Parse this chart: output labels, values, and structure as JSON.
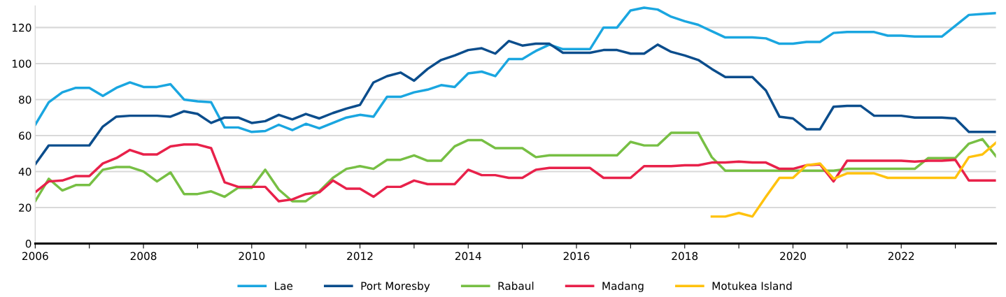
{
  "chart_data": {
    "type": "line",
    "x": [
      2006,
      2006.25,
      2006.5,
      2006.75,
      2007,
      2007.25,
      2007.5,
      2007.75,
      2008,
      2008.25,
      2008.5,
      2008.75,
      2009,
      2009.25,
      2009.5,
      2009.75,
      2010,
      2010.25,
      2010.5,
      2010.75,
      2011,
      2011.25,
      2011.5,
      2011.75,
      2012,
      2012.25,
      2012.5,
      2012.75,
      2013,
      2013.25,
      2013.5,
      2013.75,
      2014,
      2014.25,
      2014.5,
      2014.75,
      2015,
      2015.25,
      2015.5,
      2015.75,
      2016,
      2016.25,
      2016.5,
      2016.75,
      2017,
      2017.25,
      2017.5,
      2017.75,
      2018,
      2018.25,
      2018.5,
      2018.75,
      2019,
      2019.25,
      2019.5,
      2019.75,
      2020,
      2020.25,
      2020.5,
      2020.75,
      2021,
      2021.25,
      2021.5,
      2021.75,
      2022,
      2022.25,
      2022.5,
      2022.75,
      2023,
      2023.25,
      2023.5,
      2023.75
    ],
    "series": [
      {
        "name": "Lae",
        "color": "#1aa6e0",
        "values": [
          66,
          78.5,
          84,
          86.5,
          86.5,
          82,
          86.5,
          89.5,
          87,
          87,
          88.5,
          80,
          79,
          78.5,
          64.5,
          64.5,
          62,
          62.5,
          66,
          63,
          66.5,
          64,
          67,
          70,
          71.5,
          70.5,
          81.5,
          81.5,
          84,
          85.5,
          88,
          87,
          94.5,
          95.5,
          93,
          102.5,
          102.5,
          107,
          110.5,
          108,
          108,
          108,
          120,
          120,
          129.5,
          131,
          130,
          126,
          123.5,
          121.5,
          118,
          114.5,
          114.5,
          114.5,
          114,
          111,
          111,
          112,
          112,
          117,
          117.5,
          117.5,
          117.5,
          115.5,
          115.5,
          115,
          115,
          115,
          121,
          127,
          127.5,
          128
        ]
      },
      {
        "name": "Port Moresby",
        "color": "#0b4d8c",
        "values": [
          44,
          54.5,
          54.5,
          54.5,
          54.5,
          65,
          70.5,
          71,
          71,
          71,
          70.5,
          73.5,
          72,
          67,
          70,
          70,
          67,
          68,
          71.5,
          69,
          72,
          69.5,
          72.5,
          75,
          77,
          89.5,
          93,
          95,
          90.5,
          97,
          102,
          104.5,
          107.5,
          108.5,
          105.5,
          112.5,
          110,
          111,
          111,
          106,
          106,
          106,
          107.5,
          107.5,
          105.5,
          105.5,
          110.5,
          106.5,
          104.5,
          102,
          97,
          92.5,
          92.5,
          92.5,
          85,
          70.5,
          69.5,
          63.5,
          63.5,
          76,
          76.5,
          76.5,
          71,
          71,
          71,
          70,
          70,
          70,
          69.5,
          62,
          62,
          62
        ]
      },
      {
        "name": "Rabaul",
        "color": "#77bf44",
        "values": [
          23.5,
          36,
          29.5,
          32.5,
          32.5,
          41,
          42.5,
          42.5,
          40,
          34.5,
          39.5,
          27.5,
          27.5,
          29,
          26,
          31,
          31,
          41,
          30,
          23.5,
          23.5,
          29,
          36.5,
          41.5,
          43,
          41.5,
          46.5,
          46.5,
          49,
          46,
          46,
          54,
          57.5,
          57.5,
          53,
          53,
          53,
          48,
          49,
          49,
          49,
          49,
          49,
          49,
          56.5,
          54.5,
          54.5,
          61.5,
          61.5,
          61.5,
          48,
          40.5,
          40.5,
          40.5,
          40.5,
          40.5,
          40.5,
          40.5,
          40.5,
          40.5,
          41.5,
          41.5,
          41.5,
          41.5,
          41.5,
          41.5,
          47.5,
          47.5,
          47.5,
          55.5,
          58,
          48.5
        ]
      },
      {
        "name": "Madang",
        "color": "#e8214a",
        "values": [
          28.5,
          34.5,
          35,
          37.5,
          37.5,
          44.5,
          47.5,
          52,
          49.5,
          49.5,
          54,
          55,
          55,
          53,
          34,
          31.5,
          31.5,
          31.5,
          23.5,
          24.5,
          27.5,
          28.5,
          35,
          30.5,
          30.5,
          26,
          31.5,
          31.5,
          35,
          33,
          33,
          33,
          41,
          38,
          38,
          36.5,
          36.5,
          41,
          42,
          42,
          42,
          42,
          36.5,
          36.5,
          36.5,
          43,
          43,
          43,
          43.5,
          43.5,
          45,
          45,
          45.5,
          45,
          45,
          41.5,
          41.5,
          43.5,
          44,
          34.5,
          46,
          46,
          46,
          46,
          46,
          45.5,
          46,
          46,
          46.5,
          35,
          35,
          35
        ]
      },
      {
        "name": "Motukea Island",
        "color": "#ffc20e",
        "values": [
          null,
          null,
          null,
          null,
          null,
          null,
          null,
          null,
          null,
          null,
          null,
          null,
          null,
          null,
          null,
          null,
          null,
          null,
          null,
          null,
          null,
          null,
          null,
          null,
          null,
          null,
          null,
          null,
          null,
          null,
          null,
          null,
          null,
          null,
          null,
          null,
          null,
          null,
          null,
          null,
          null,
          null,
          null,
          null,
          null,
          null,
          null,
          null,
          null,
          null,
          15,
          15,
          17,
          15,
          26,
          36.5,
          36.5,
          43.5,
          44.5,
          36,
          39,
          39,
          39,
          36.5,
          36.5,
          36.5,
          36.5,
          36.5,
          36.5,
          48,
          49.5,
          56
        ]
      }
    ],
    "xlim": [
      2006,
      2023.75
    ],
    "xticks": [
      2006,
      {
        "value": 2007,
        "label": null
      },
      2008,
      {
        "value": 2009,
        "label": null
      },
      2010,
      {
        "value": 2011,
        "label": null
      },
      2012,
      {
        "value": 2013,
        "label": null
      },
      2014,
      {
        "value": 2015,
        "label": null
      },
      2016,
      {
        "value": 2017,
        "label": null
      },
      2018,
      {
        "value": 2019,
        "label": null
      },
      2020,
      {
        "value": 2021,
        "label": null
      },
      2022,
      {
        "value": 2023,
        "label": null
      }
    ],
    "ylim": [
      0,
      132
    ],
    "yticks": [
      0,
      20,
      40,
      60,
      80,
      100,
      120
    ],
    "grid": "y",
    "legend": "bottom",
    "marker": "none",
    "line_style": "solid"
  }
}
